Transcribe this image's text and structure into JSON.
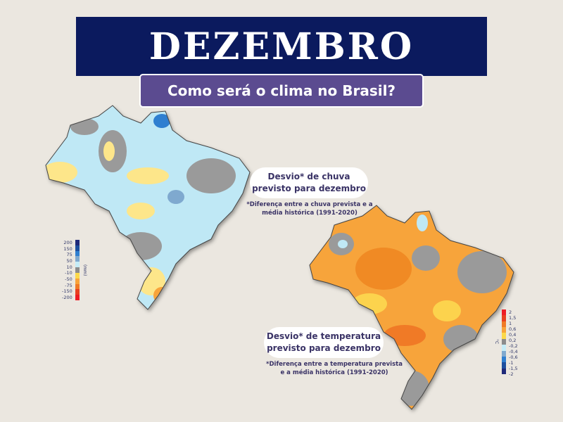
{
  "header": {
    "title": "DEZEMBRO",
    "subtitle": "Como será o clima no Brasil?"
  },
  "rain": {
    "title_line1": "Desvio* de chuva",
    "title_line2": "previsto para dezembro",
    "note_line1": "*Diferença entre a chuva prevista e a",
    "note_line2": "média histórica (1991-2020)",
    "legend_unit": "(mm)",
    "legend_labels": [
      "200",
      "150",
      "75",
      "50",
      "10",
      "-10",
      "-50",
      "-75",
      "-150",
      "-200"
    ],
    "legend_colors": [
      "#1f2a7a",
      "#1d4f9e",
      "#2f7fd0",
      "#7fa9cf",
      "#c5ecf7",
      "#8c8c8c",
      "#fcd94a",
      "#f8a33a",
      "#f07a26",
      "#e84020",
      "#ee1c24"
    ]
  },
  "temperature": {
    "title_line1": "Desvio* de temperatura",
    "title_line2": "previsto para dezembro",
    "note_line1": "*Diferença entre a temperatura prevista",
    "note_line2": "e a média histórica (1991-2020)",
    "legend_unit": "°C",
    "legend_labels": [
      "2",
      "1,5",
      "1",
      "0,6",
      "0,4",
      "0,2",
      "-0,2",
      "-0,4",
      "-0,6",
      "-1",
      "-1,5",
      "-2"
    ],
    "legend_colors": [
      "#ee1c24",
      "#e84020",
      "#f07a26",
      "#f8a33a",
      "#fcd94a",
      "#8c8c8c",
      "#c5ecf7",
      "#7fa9cf",
      "#2f7fd0",
      "#1d4f9e",
      "#1f2a7a"
    ]
  }
}
